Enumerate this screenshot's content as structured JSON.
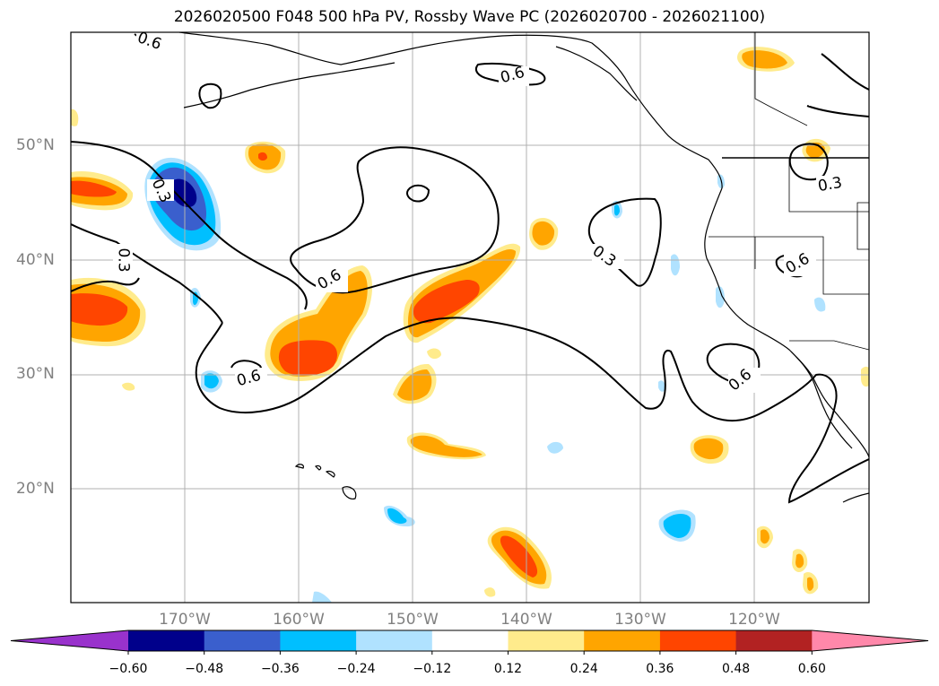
{
  "title": "2026020500 F048 500 hPa PV, Rossby Wave PC (2026020700 - 2026021100)",
  "map": {
    "lat_labels": [
      "50°N",
      "40°N",
      "30°N",
      "20°N"
    ],
    "lon_labels": [
      "170°W",
      "160°W",
      "150°W",
      "140°W",
      "130°W",
      "120°W"
    ],
    "contour_labels": [
      "0.6",
      "0.6",
      "0.3",
      "0.3",
      "0.6",
      "0.6",
      "0.3",
      "0.6",
      "0.3",
      "0.6"
    ]
  },
  "colorbar": {
    "ticks": [
      "−0.60",
      "−0.48",
      "−0.36",
      "−0.24",
      "−0.12",
      "0.12",
      "0.24",
      "0.36",
      "0.48",
      "0.60"
    ],
    "colors": [
      "#9932cc",
      "#00008b",
      "#3a5fcd",
      "#00bfff",
      "#b0e2ff",
      "#ffffff",
      "#ffeb8c",
      "#ffa500",
      "#ff4500",
      "#b22222",
      "#ff88aa"
    ]
  }
}
